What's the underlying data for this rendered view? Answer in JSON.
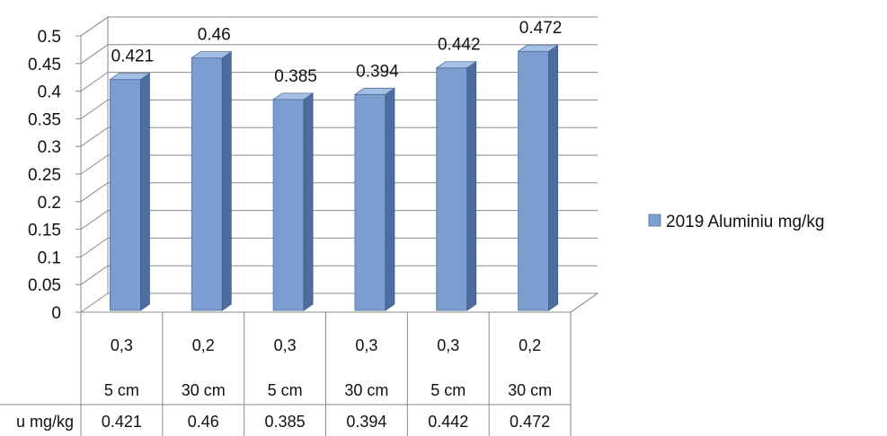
{
  "chart_data": {
    "type": "bar",
    "categories": [
      {
        "lines": [
          "0,3",
          "5 cm"
        ]
      },
      {
        "lines": [
          "0,2",
          "30 cm"
        ]
      },
      {
        "lines": [
          "0,3",
          "5 cm"
        ]
      },
      {
        "lines": [
          "0,3",
          "30 cm"
        ]
      },
      {
        "lines": [
          "0,3",
          "5 cm"
        ]
      },
      {
        "lines": [
          "0,2",
          "30 cm"
        ]
      }
    ],
    "series": [
      {
        "name": "2019 Aluminiu mg/kg",
        "values": [
          0.421,
          0.46,
          0.385,
          0.394,
          0.442,
          0.472
        ],
        "labels": [
          "0.421",
          "0.46",
          "0.385",
          "0.394",
          "0.442",
          "0.472"
        ],
        "color": "#7f9fd0"
      }
    ],
    "table_row_header": "u mg/kg",
    "yticks": [
      "0",
      "0.05",
      "0.1",
      "0.15",
      "0.2",
      "0.25",
      "0.3",
      "0.35",
      "0.4",
      "0.45",
      "0.5"
    ],
    "ylim": [
      0,
      0.5
    ],
    "grid": true,
    "legend": "right",
    "style": "3d-column-with-data-table"
  }
}
